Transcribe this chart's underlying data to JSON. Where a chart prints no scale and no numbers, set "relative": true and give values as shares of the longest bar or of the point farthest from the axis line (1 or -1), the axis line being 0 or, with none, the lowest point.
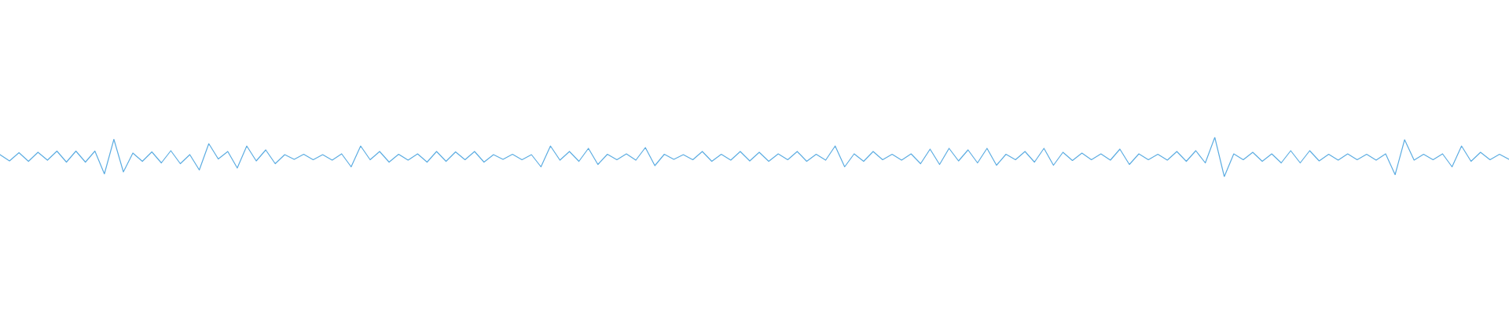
{
  "chart_data": {
    "type": "line",
    "relative": true,
    "tick_labels": false,
    "line_style": "solid",
    "categories": [
      null,
      null,
      null,
      null,
      null,
      null,
      null,
      null,
      null,
      null,
      null,
      null,
      null,
      null,
      null,
      null,
      null,
      null,
      null,
      null,
      null,
      null,
      null,
      null,
      null,
      null,
      null,
      null,
      null,
      null,
      null,
      null,
      null,
      null,
      null,
      null,
      null,
      null,
      null,
      null,
      null,
      null,
      null,
      null,
      null,
      null,
      null,
      null,
      null,
      null,
      null,
      null,
      null,
      null,
      null,
      null,
      null,
      null,
      null,
      null,
      null,
      null,
      null,
      null,
      null,
      null,
      null,
      null,
      null,
      null,
      null,
      null,
      null,
      null,
      null,
      null,
      null,
      null,
      null,
      null,
      null,
      null,
      null,
      null,
      null,
      null,
      null,
      null,
      null,
      null,
      null,
      null,
      null,
      null,
      null,
      null,
      null,
      null,
      null,
      null,
      null,
      null,
      null,
      null,
      null,
      null,
      null,
      null,
      null,
      null,
      null,
      null,
      null,
      null,
      null,
      null,
      null,
      null,
      null,
      null,
      null,
      null,
      null,
      null,
      null,
      null,
      null,
      null,
      null,
      null,
      null,
      null,
      null,
      null,
      null,
      null,
      null,
      null,
      null,
      null,
      null,
      null,
      null,
      null,
      null,
      null,
      null,
      null,
      null,
      null,
      null,
      null,
      null,
      null,
      null,
      null,
      null,
      null,
      null,
      null
    ],
    "series": [
      {
        "color": "#5dade2",
        "values": [
          0.56,
          0.4,
          0.61,
          0.39,
          0.62,
          0.42,
          0.65,
          0.37,
          0.65,
          0.37,
          0.65,
          0.07,
          0.95,
          0.12,
          0.6,
          0.39,
          0.63,
          0.35,
          0.66,
          0.33,
          0.56,
          0.17,
          0.84,
          0.45,
          0.64,
          0.22,
          0.78,
          0.4,
          0.68,
          0.33,
          0.56,
          0.44,
          0.57,
          0.43,
          0.56,
          0.42,
          0.58,
          0.25,
          0.78,
          0.43,
          0.64,
          0.37,
          0.57,
          0.42,
          0.58,
          0.37,
          0.64,
          0.39,
          0.63,
          0.43,
          0.64,
          0.37,
          0.56,
          0.44,
          0.57,
          0.43,
          0.56,
          0.25,
          0.78,
          0.42,
          0.64,
          0.39,
          0.72,
          0.31,
          0.57,
          0.43,
          0.58,
          0.42,
          0.74,
          0.28,
          0.57,
          0.44,
          0.56,
          0.43,
          0.64,
          0.39,
          0.57,
          0.42,
          0.64,
          0.4,
          0.62,
          0.39,
          0.58,
          0.43,
          0.64,
          0.39,
          0.57,
          0.42,
          0.78,
          0.25,
          0.58,
          0.39,
          0.64,
          0.43,
          0.57,
          0.42,
          0.58,
          0.33,
          0.7,
          0.31,
          0.72,
          0.4,
          0.68,
          0.35,
          0.72,
          0.29,
          0.57,
          0.43,
          0.64,
          0.37,
          0.72,
          0.29,
          0.62,
          0.41,
          0.6,
          0.43,
          0.58,
          0.42,
          0.7,
          0.31,
          0.58,
          0.43,
          0.57,
          0.42,
          0.64,
          0.39,
          0.66,
          0.35,
          1.0,
          0.0,
          0.58,
          0.43,
          0.62,
          0.39,
          0.58,
          0.35,
          0.66,
          0.35,
          0.66,
          0.4,
          0.57,
          0.42,
          0.58,
          0.43,
          0.57,
          0.42,
          0.58,
          0.05,
          0.94,
          0.42,
          0.57,
          0.43,
          0.58,
          0.25,
          0.78,
          0.39,
          0.62,
          0.43,
          0.57,
          0.44
        ]
      }
    ]
  }
}
